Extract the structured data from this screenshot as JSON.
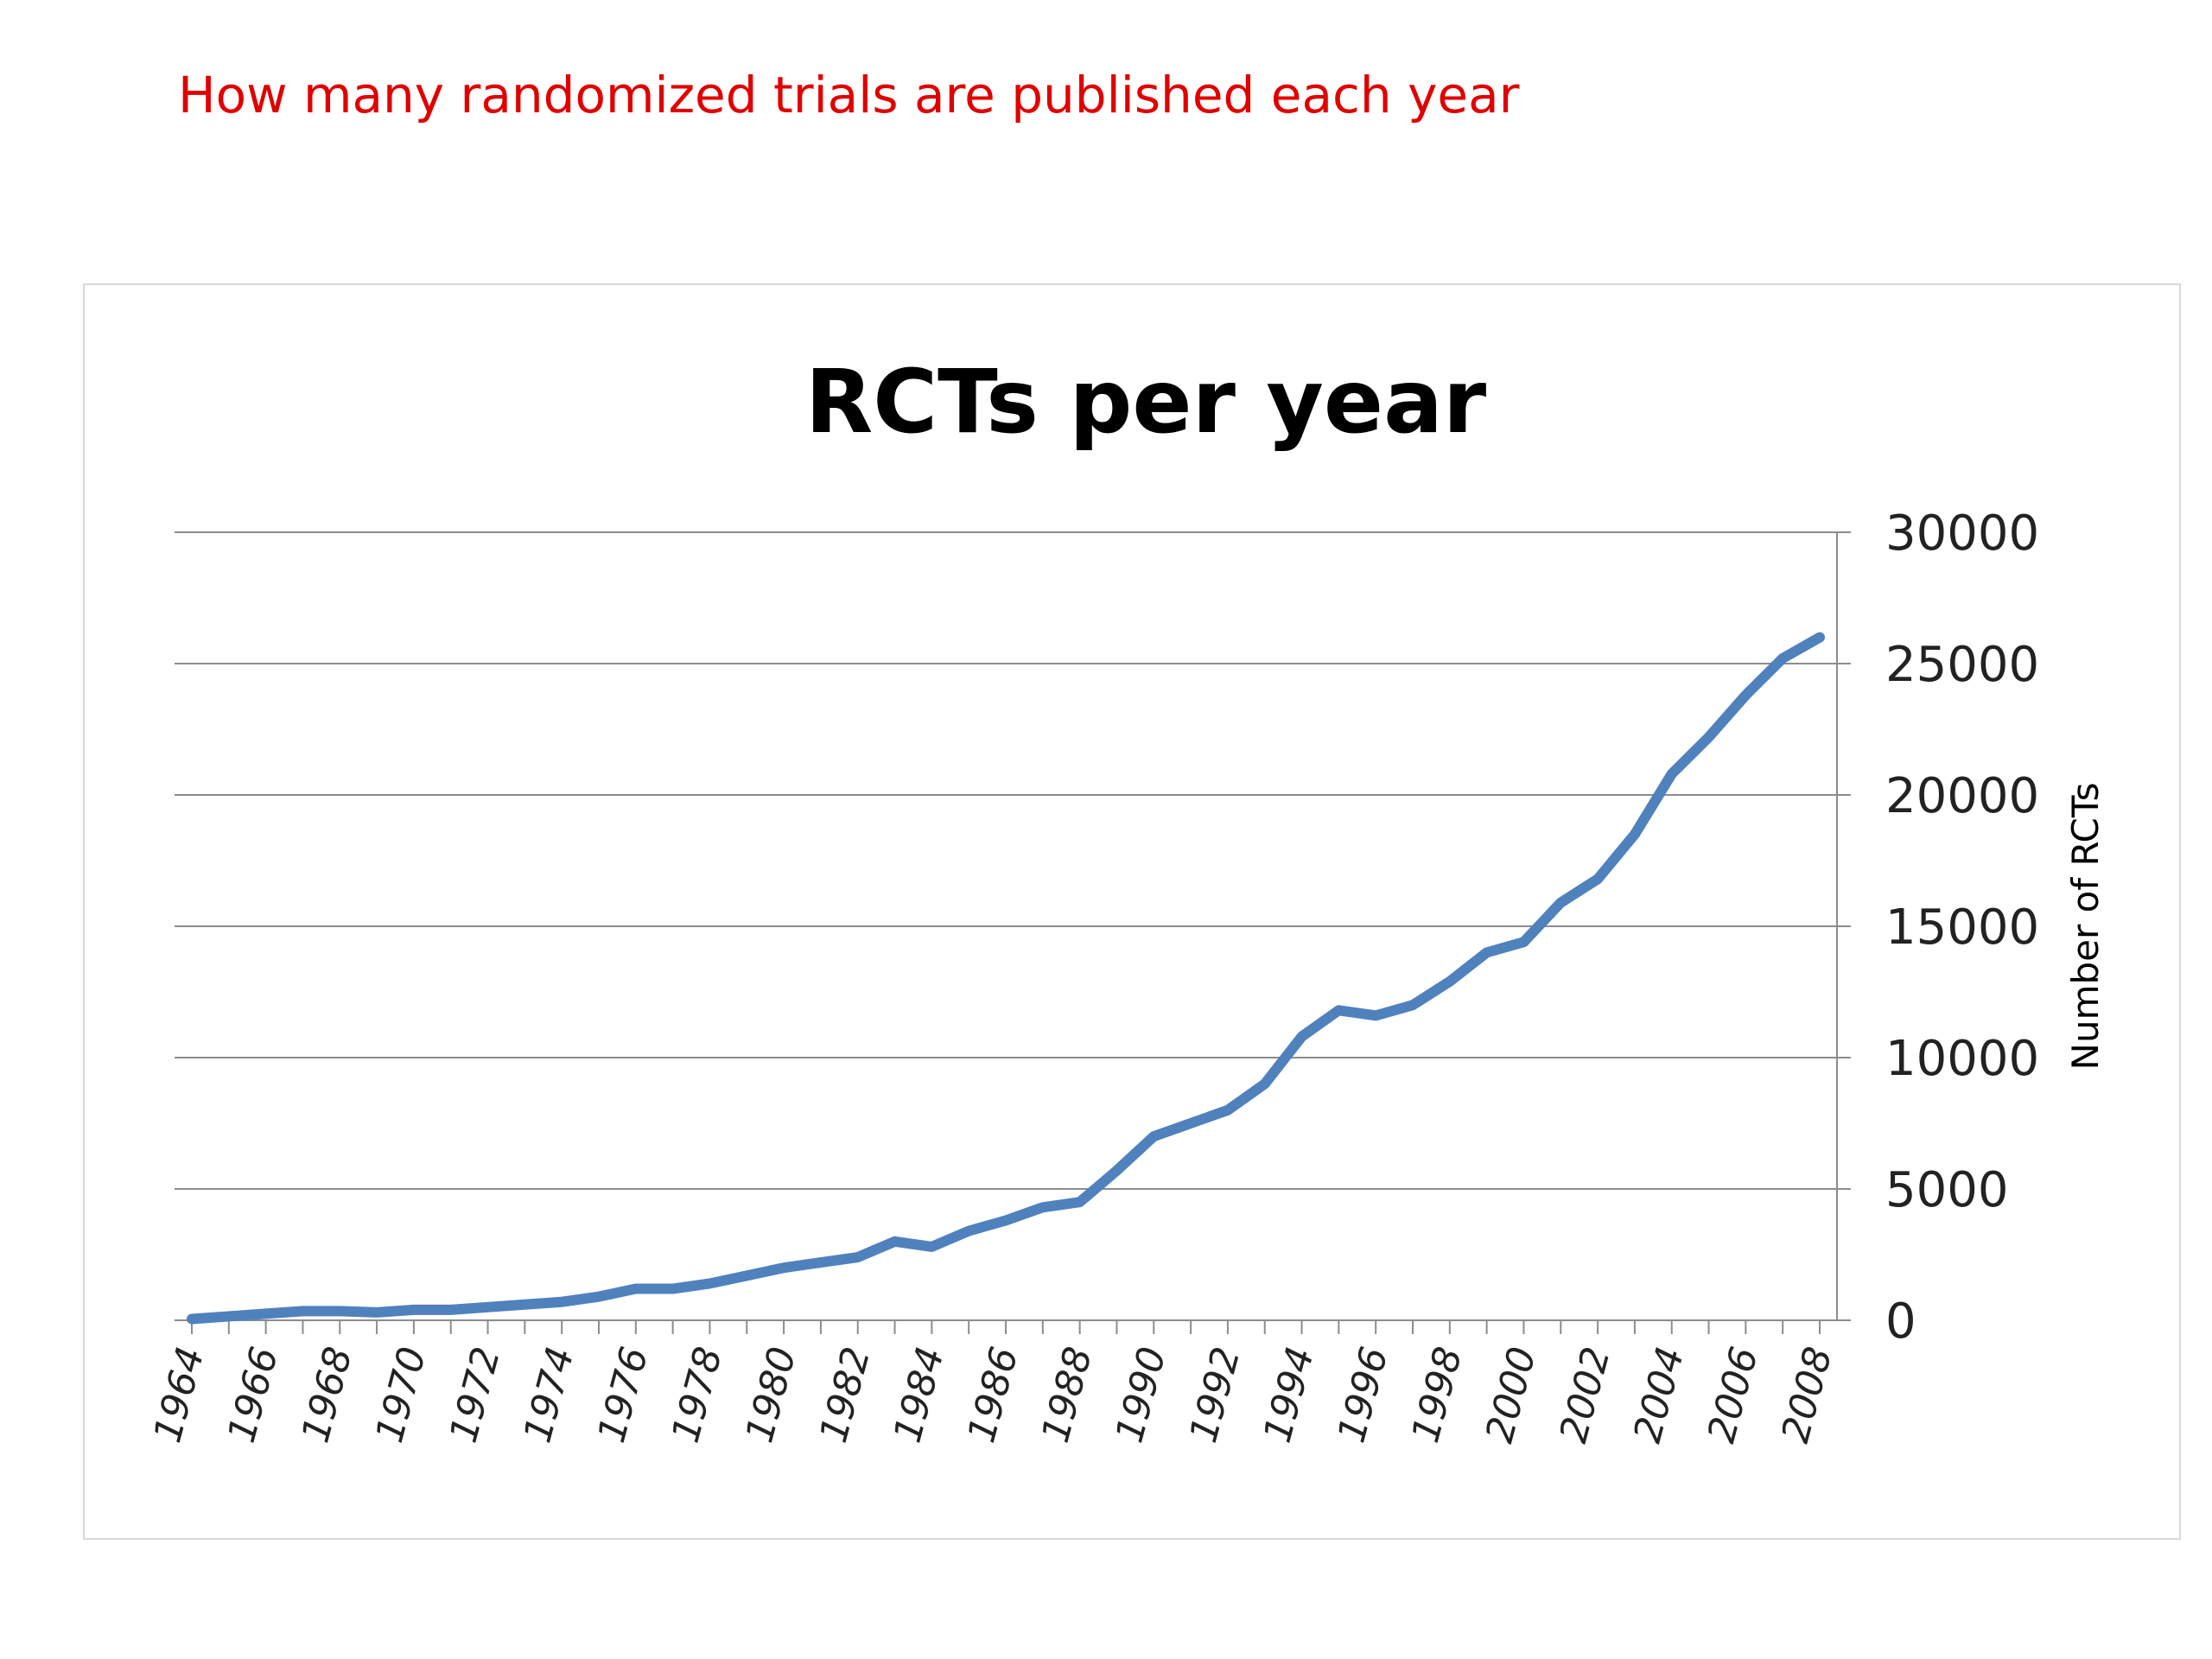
{
  "page": {
    "heading": "How many randomized trials are published each year",
    "heading_color": "#e00000"
  },
  "chart_data": {
    "type": "line",
    "title": "RCTs per year",
    "xlabel": "",
    "ylabel": "Number of RCTs",
    "ylim": [
      0,
      30000
    ],
    "y_ticks": [
      0,
      5000,
      10000,
      15000,
      20000,
      25000,
      30000
    ],
    "x_tick_labels": [
      "1964",
      "1966",
      "1968",
      "1970",
      "1972",
      "1974",
      "1976",
      "1978",
      "1980",
      "1982",
      "1984",
      "1986",
      "1988",
      "1990",
      "1992",
      "1994",
      "1996",
      "1998",
      "2000",
      "2002",
      "2004",
      "2006",
      "2008"
    ],
    "y_axis_position": "right",
    "grid": true,
    "legend": "none",
    "line_color": "#4f81bd",
    "series": [
      {
        "x": [
          1964,
          1965,
          1966,
          1967,
          1968,
          1969,
          1970,
          1971,
          1972,
          1973,
          1974,
          1975,
          1976,
          1977,
          1978,
          1979,
          1980,
          1981,
          1982,
          1983,
          1984,
          1985,
          1986,
          1987,
          1988,
          1989,
          1990,
          1991,
          1992,
          1993,
          1994,
          1995,
          1996,
          1997,
          1998,
          1999,
          2000,
          2001,
          2002,
          2003,
          2004,
          2005,
          2006,
          2007,
          2008
        ],
        "values": [
          50,
          150,
          250,
          350,
          350,
          300,
          400,
          400,
          500,
          600,
          700,
          900,
          1200,
          1200,
          1400,
          1700,
          2000,
          2200,
          2400,
          3000,
          2800,
          3400,
          3800,
          4300,
          4500,
          5700,
          7000,
          7500,
          8000,
          9000,
          10800,
          11800,
          11600,
          12000,
          12900,
          14000,
          14400,
          15900,
          16800,
          18500,
          20800,
          22200,
          23800,
          25200,
          26000
        ]
      }
    ]
  }
}
